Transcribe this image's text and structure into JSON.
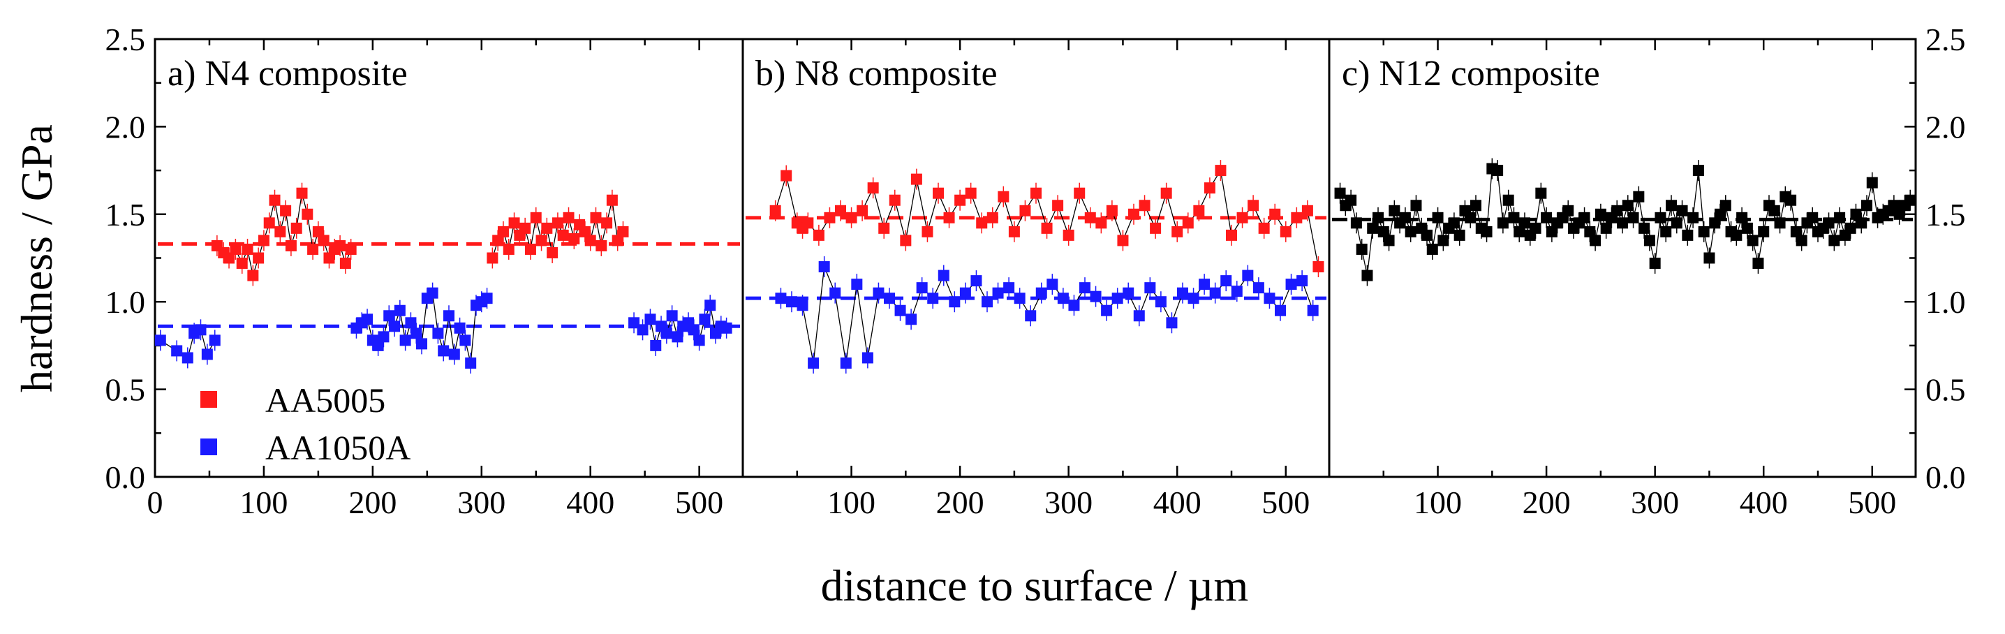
{
  "chart_data": [
    {
      "type": "scatter",
      "panel": "a",
      "title": "a) N4 composite",
      "xlabel": "distance to surface / µm",
      "ylabel": "hardness / GPa",
      "xlim": [
        0,
        540
      ],
      "ylim": [
        0.0,
        2.5
      ],
      "x_ticks": [
        0,
        100,
        200,
        300,
        400,
        500
      ],
      "y_ticks": [
        0.0,
        0.5,
        1.0,
        1.5,
        2.0,
        2.5
      ],
      "x_tick_labels": [
        "0",
        "100",
        "200",
        "300",
        "400",
        "500"
      ],
      "y_tick_labels": [
        "0.0",
        "0.5",
        "1.0",
        "1.5",
        "2.0",
        "2.5"
      ],
      "legend_position": "bottom-left",
      "series": [
        {
          "name": "AA1050A",
          "color": "#1a1aff",
          "reference_line": 0.86,
          "segments": [
            {
              "x": [
                5,
                20,
                30,
                36,
                42,
                48,
                55
              ],
              "y": [
                0.78,
                0.72,
                0.68,
                0.82,
                0.84,
                0.7,
                0.78
              ]
            },
            {
              "x": [
                185,
                190,
                195,
                200,
                205,
                210,
                215,
                220,
                225,
                230,
                235,
                240,
                245,
                250,
                255,
                260,
                265,
                270,
                275,
                280,
                285,
                290,
                295,
                300,
                305
              ],
              "y": [
                0.85,
                0.88,
                0.9,
                0.78,
                0.75,
                0.8,
                0.92,
                0.86,
                0.95,
                0.78,
                0.88,
                0.82,
                0.76,
                1.02,
                1.05,
                0.82,
                0.72,
                0.92,
                0.7,
                0.85,
                0.78,
                0.65,
                0.98,
                1.0,
                1.02
              ]
            },
            {
              "x": [
                440,
                448,
                455,
                460,
                465,
                470,
                475,
                480,
                485,
                490,
                495,
                500,
                505,
                510,
                515,
                520,
                525
              ],
              "y": [
                0.88,
                0.84,
                0.9,
                0.75,
                0.86,
                0.82,
                0.92,
                0.8,
                0.86,
                0.88,
                0.84,
                0.78,
                0.9,
                0.98,
                0.82,
                0.86,
                0.85
              ]
            }
          ]
        },
        {
          "name": "AA5005",
          "color": "#ff1a1a",
          "reference_line": 1.33,
          "segments": [
            {
              "x": [
                57,
                63,
                68,
                74,
                80,
                85,
                90,
                95,
                100,
                105,
                110,
                115,
                120,
                125,
                130,
                135,
                140,
                145,
                150,
                155,
                160,
                165,
                170,
                175,
                180
              ],
              "y": [
                1.32,
                1.28,
                1.25,
                1.3,
                1.22,
                1.3,
                1.15,
                1.25,
                1.35,
                1.45,
                1.58,
                1.4,
                1.52,
                1.32,
                1.42,
                1.62,
                1.5,
                1.3,
                1.4,
                1.35,
                1.25,
                1.3,
                1.32,
                1.22,
                1.3
              ]
            },
            {
              "x": [
                310,
                315,
                320,
                325,
                330,
                335,
                340,
                345,
                350,
                355,
                360,
                365,
                370,
                375,
                380,
                385,
                390,
                395,
                400,
                405,
                410,
                415,
                420,
                425,
                430
              ],
              "y": [
                1.25,
                1.35,
                1.4,
                1.3,
                1.45,
                1.38,
                1.42,
                1.3,
                1.48,
                1.35,
                1.42,
                1.28,
                1.45,
                1.38,
                1.48,
                1.36,
                1.44,
                1.4,
                1.35,
                1.48,
                1.32,
                1.45,
                1.58,
                1.35,
                1.4
              ]
            }
          ]
        }
      ]
    },
    {
      "type": "scatter",
      "panel": "b",
      "title": "b) N8 composite",
      "xlabel": "distance to surface / µm",
      "ylabel": "hardness / GPa",
      "xlim": [
        0,
        540
      ],
      "ylim": [
        0.0,
        2.5
      ],
      "x_ticks": [
        100,
        200,
        300,
        400,
        500
      ],
      "x_tick_labels": [
        "100",
        "200",
        "300",
        "400",
        "500"
      ],
      "series": [
        {
          "name": "AA5005",
          "color": "#ff1a1a",
          "reference_line": 1.48,
          "x": [
            30,
            40,
            50,
            55,
            60,
            70,
            80,
            90,
            100,
            110,
            120,
            130,
            140,
            150,
            160,
            170,
            180,
            190,
            200,
            210,
            220,
            230,
            240,
            250,
            260,
            270,
            280,
            290,
            300,
            310,
            320,
            330,
            340,
            350,
            360,
            370,
            380,
            390,
            400,
            410,
            420,
            430,
            440,
            450,
            460,
            470,
            480,
            490,
            500,
            510,
            520,
            530
          ],
          "y": [
            1.52,
            1.72,
            1.45,
            1.42,
            1.45,
            1.38,
            1.48,
            1.52,
            1.48,
            1.52,
            1.65,
            1.42,
            1.58,
            1.35,
            1.7,
            1.4,
            1.62,
            1.48,
            1.58,
            1.62,
            1.45,
            1.48,
            1.6,
            1.4,
            1.52,
            1.62,
            1.42,
            1.55,
            1.38,
            1.62,
            1.48,
            1.45,
            1.52,
            1.35,
            1.5,
            1.55,
            1.42,
            1.62,
            1.4,
            1.45,
            1.52,
            1.65,
            1.75,
            1.38,
            1.48,
            1.55,
            1.42,
            1.5,
            1.4,
            1.48,
            1.52,
            1.2
          ]
        },
        {
          "name": "AA1050A",
          "color": "#1a1aff",
          "reference_line": 1.02,
          "x": [
            35,
            45,
            55,
            65,
            75,
            85,
            95,
            105,
            115,
            125,
            135,
            145,
            155,
            165,
            175,
            185,
            195,
            205,
            215,
            225,
            235,
            245,
            255,
            265,
            275,
            285,
            295,
            305,
            315,
            325,
            335,
            345,
            355,
            365,
            375,
            385,
            395,
            405,
            415,
            425,
            435,
            445,
            455,
            465,
            475,
            485,
            495,
            505,
            515,
            525
          ],
          "y": [
            1.02,
            1.0,
            0.98,
            0.65,
            1.2,
            1.05,
            0.65,
            1.1,
            0.68,
            1.05,
            1.02,
            0.95,
            0.9,
            1.08,
            1.02,
            1.15,
            1.0,
            1.05,
            1.12,
            1.0,
            1.05,
            1.08,
            1.02,
            0.92,
            1.05,
            1.1,
            1.02,
            0.98,
            1.08,
            1.03,
            0.95,
            1.02,
            1.05,
            0.92,
            1.08,
            1.0,
            0.88,
            1.05,
            1.02,
            1.1,
            1.05,
            1.12,
            1.06,
            1.15,
            1.08,
            1.02,
            0.95,
            1.1,
            1.12,
            0.95
          ]
        }
      ]
    },
    {
      "type": "scatter",
      "panel": "c",
      "title": "c) N12 composite",
      "xlabel": "distance to surface / µm",
      "ylabel": "hardness / GPa",
      "xlim": [
        0,
        540
      ],
      "ylim": [
        0.0,
        2.5
      ],
      "x_ticks": [
        100,
        200,
        300,
        400,
        500
      ],
      "x_tick_labels": [
        "100",
        "200",
        "300",
        "400",
        "500"
      ],
      "y_ticks": [
        0.0,
        0.5,
        1.0,
        1.5,
        2.0,
        2.5
      ],
      "y_tick_labels": [
        "0.0",
        "0.5",
        "1.0",
        "1.5",
        "2.0",
        "2.5"
      ],
      "series": [
        {
          "name": "N12",
          "color": "#000000",
          "reference_line": 1.47,
          "x": [
            10,
            15,
            20,
            25,
            30,
            35,
            40,
            45,
            50,
            55,
            60,
            65,
            70,
            75,
            80,
            85,
            90,
            95,
            100,
            105,
            110,
            115,
            120,
            125,
            130,
            135,
            140,
            145,
            150,
            155,
            160,
            165,
            170,
            175,
            180,
            185,
            190,
            195,
            200,
            205,
            210,
            215,
            220,
            225,
            230,
            235,
            240,
            245,
            250,
            255,
            260,
            265,
            270,
            275,
            280,
            285,
            290,
            295,
            300,
            305,
            310,
            315,
            320,
            325,
            330,
            335,
            340,
            345,
            350,
            355,
            360,
            365,
            370,
            375,
            380,
            385,
            390,
            395,
            400,
            405,
            410,
            415,
            420,
            425,
            430,
            435,
            440,
            445,
            450,
            455,
            460,
            465,
            470,
            475,
            480,
            485,
            490,
            495,
            500,
            505,
            510,
            515,
            520,
            525,
            530,
            535
          ],
          "y": [
            1.62,
            1.55,
            1.58,
            1.45,
            1.3,
            1.15,
            1.42,
            1.48,
            1.4,
            1.35,
            1.52,
            1.45,
            1.48,
            1.4,
            1.55,
            1.42,
            1.38,
            1.3,
            1.48,
            1.35,
            1.42,
            1.45,
            1.38,
            1.52,
            1.48,
            1.55,
            1.42,
            1.4,
            1.76,
            1.75,
            1.45,
            1.58,
            1.48,
            1.4,
            1.45,
            1.38,
            1.42,
            1.62,
            1.48,
            1.4,
            1.45,
            1.48,
            1.52,
            1.42,
            1.45,
            1.48,
            1.4,
            1.35,
            1.5,
            1.42,
            1.48,
            1.52,
            1.45,
            1.55,
            1.48,
            1.6,
            1.42,
            1.35,
            1.22,
            1.48,
            1.4,
            1.55,
            1.45,
            1.52,
            1.38,
            1.48,
            1.75,
            1.4,
            1.25,
            1.45,
            1.5,
            1.55,
            1.4,
            1.38,
            1.48,
            1.42,
            1.35,
            1.22,
            1.4,
            1.55,
            1.52,
            1.45,
            1.6,
            1.58,
            1.4,
            1.35,
            1.45,
            1.48,
            1.4,
            1.42,
            1.45,
            1.35,
            1.48,
            1.38,
            1.42,
            1.5,
            1.45,
            1.55,
            1.68,
            1.48,
            1.5,
            1.52,
            1.55,
            1.5,
            1.55,
            1.58
          ]
        }
      ]
    }
  ],
  "legend": {
    "entries": [
      {
        "label": "AA5005",
        "color": "#ff1a1a"
      },
      {
        "label": "AA1050A",
        "color": "#1a1aff"
      }
    ]
  },
  "axes": {
    "ylabel": "hardness / GPa",
    "xlabel": "distance to surface / µm"
  }
}
